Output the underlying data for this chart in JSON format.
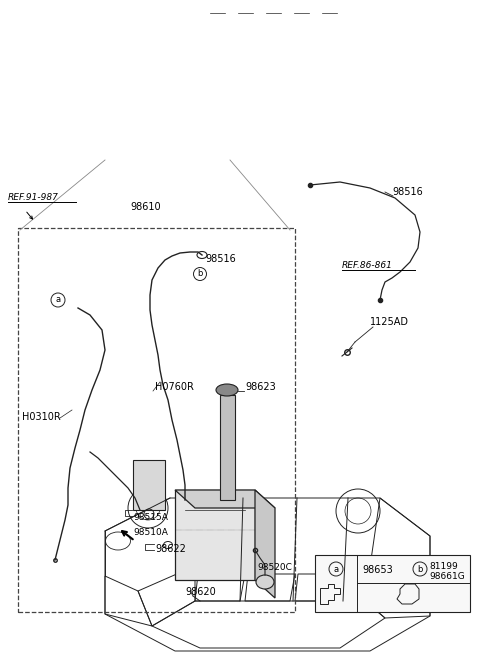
{
  "bg_color": "#ffffff",
  "line_color": "#222222",
  "text_color": "#000000",
  "fig_width": 4.8,
  "fig_height": 6.56,
  "dpi": 100,
  "labels": {
    "ref_91_987": "REF.91-987",
    "ref_86_861": "REF.86-861",
    "98610": "98610",
    "98516_top": "98516",
    "98516_inner": "98516",
    "98623": "98623",
    "H0310R": "H0310R",
    "H0760R": "H0760R",
    "98515A": "98515A",
    "98510A": "98510A",
    "98622": "98622",
    "98620": "98620",
    "98520C": "98520C",
    "1125AD": "1125AD",
    "circle_a": "a",
    "circle_b": "b",
    "98653": "98653",
    "81199": "81199",
    "98661G": "98661G"
  }
}
